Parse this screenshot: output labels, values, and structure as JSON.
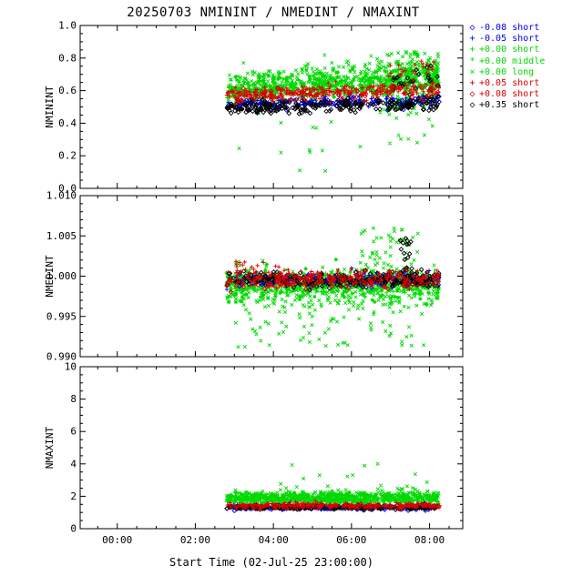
{
  "title": "20250703 NMININT / NMEDINT / NMAXINT",
  "xlabel": "Start Time (02-Jul-25 23:00:00)",
  "x_axis": {
    "min": 23.05,
    "max": 32.85,
    "major_ticks": [
      {
        "value": 24,
        "label": "00:00"
      },
      {
        "value": 26,
        "label": "02:00"
      },
      {
        "value": 28,
        "label": "04:00"
      },
      {
        "value": 30,
        "label": "06:00"
      },
      {
        "value": 32,
        "label": "08:00"
      }
    ],
    "minor_step": 0.5
  },
  "colors": {
    "blue": "#0000ee",
    "green": "#00d900",
    "red": "#dd0000",
    "black": "#000000"
  },
  "legend": {
    "items": [
      {
        "label": "-0.08 short",
        "color": "#0000ee",
        "glyph": "◇",
        "marker": "diamond"
      },
      {
        "label": "-0.05 short",
        "color": "#0000ee",
        "glyph": "+",
        "marker": "plus"
      },
      {
        "label": "+0.00 short",
        "color": "#00d900",
        "glyph": "+",
        "marker": "plus"
      },
      {
        "label": "+0.00 middle",
        "color": "#00d900",
        "glyph": "*",
        "marker": "asterisk"
      },
      {
        "label": "+0.00 long",
        "color": "#00d900",
        "glyph": "×",
        "marker": "x"
      },
      {
        "label": "+0.05 short",
        "color": "#dd0000",
        "glyph": "+",
        "marker": "plus"
      },
      {
        "label": "+0.08 short",
        "color": "#dd0000",
        "glyph": "◇",
        "marker": "diamond"
      },
      {
        "label": "+0.35 short",
        "color": "#000000",
        "glyph": "◇",
        "marker": "diamond"
      }
    ]
  },
  "chart_data": [
    {
      "type": "scatter",
      "ylabel": "NMININT",
      "ylim": [
        0.0,
        1.0
      ],
      "yticks": {
        "values": [
          0.0,
          0.2,
          0.4,
          0.6,
          0.8,
          1.0
        ],
        "labels": [
          "0.0",
          "0.2",
          "0.4",
          "0.6",
          "0.8",
          "1.0"
        ]
      },
      "y_minor_step": 0.05,
      "x_data_range": [
        26.8,
        32.25
      ],
      "series": [
        {
          "marker": "x",
          "color": "#00d900",
          "count": 520,
          "seed": 11,
          "x": [
            26.8,
            32.25
          ],
          "y_mean": [
            0.62,
            0.7
          ],
          "y_sigma": 0.055
        },
        {
          "marker": "plus",
          "color": "#00d900",
          "count": 300,
          "seed": 12,
          "x": [
            26.8,
            32.25
          ],
          "y_mean": [
            0.595,
            0.655
          ],
          "y_sigma": 0.03
        },
        {
          "marker": "asterisk",
          "color": "#00d900",
          "count": 150,
          "seed": 13,
          "x": [
            26.8,
            32.25
          ],
          "y_mean": [
            0.6,
            0.67
          ],
          "y_sigma": 0.04
        },
        {
          "marker": "x",
          "color": "#00d900",
          "count": 26,
          "seed": 14,
          "x": [
            26.9,
            32.1
          ],
          "y_uniform": [
            0.1,
            0.5
          ]
        },
        {
          "marker": "x",
          "color": "#00d900",
          "count": 110,
          "seed": 15,
          "x": [
            30.9,
            31.7
          ],
          "y_uniform": [
            0.45,
            0.85
          ]
        },
        {
          "marker": "x",
          "color": "#00d900",
          "count": 50,
          "seed": 16,
          "x": [
            31.85,
            32.2
          ],
          "y_uniform": [
            0.5,
            0.82
          ]
        },
        {
          "marker": "diamond",
          "color": "#0000ee",
          "count": 110,
          "seed": 17,
          "x": [
            26.8,
            32.25
          ],
          "y_mean": [
            0.515,
            0.535
          ],
          "y_sigma": 0.018
        },
        {
          "marker": "plus",
          "color": "#0000ee",
          "count": 110,
          "seed": 18,
          "x": [
            26.8,
            32.25
          ],
          "y_mean": [
            0.525,
            0.545
          ],
          "y_sigma": 0.018
        },
        {
          "marker": "diamond",
          "color": "#000000",
          "count": 250,
          "seed": 19,
          "x": [
            26.8,
            32.25
          ],
          "y_mean": [
            0.495,
            0.52
          ],
          "y_sigma": 0.022
        },
        {
          "marker": "diamond",
          "color": "#000000",
          "count": 30,
          "seed": 20,
          "x": [
            31.0,
            32.25
          ],
          "y_mean": [
            0.62,
            0.66
          ],
          "y_sigma": 0.05
        },
        {
          "marker": "plus",
          "color": "#dd0000",
          "count": 250,
          "seed": 21,
          "x": [
            26.8,
            32.25
          ],
          "y_mean": [
            0.575,
            0.6
          ],
          "y_sigma": 0.02
        },
        {
          "marker": "diamond",
          "color": "#dd0000",
          "count": 70,
          "seed": 22,
          "x": [
            26.8,
            32.25
          ],
          "y_mean": [
            0.58,
            0.6
          ],
          "y_sigma": 0.022
        },
        {
          "marker": "plus",
          "color": "#dd0000",
          "count": 22,
          "seed": 23,
          "x": [
            30.8,
            32.25
          ],
          "y_mean": [
            0.7,
            0.74
          ],
          "y_sigma": 0.035
        }
      ]
    },
    {
      "type": "scatter",
      "ylabel": "NMEDINT",
      "ylim": [
        0.99,
        1.01
      ],
      "yticks": {
        "values": [
          0.99,
          0.995,
          1.0,
          1.005,
          1.01
        ],
        "labels": [
          "0.990",
          "0.995",
          "1.000",
          "1.005",
          "1.010"
        ]
      },
      "y_minor_step": 0.001,
      "x_data_range": [
        26.8,
        32.25
      ],
      "series": [
        {
          "marker": "x",
          "color": "#00d900",
          "count": 480,
          "seed": 31,
          "x": [
            26.8,
            32.25
          ],
          "y_mean": [
            0.9985,
            0.9985
          ],
          "y_sigma": 0.0012
        },
        {
          "marker": "plus",
          "color": "#00d900",
          "count": 280,
          "seed": 32,
          "x": [
            26.8,
            32.25
          ],
          "y_mean": [
            0.9991,
            0.9991
          ],
          "y_sigma": 0.0007
        },
        {
          "marker": "asterisk",
          "color": "#00d900",
          "count": 140,
          "seed": 33,
          "x": [
            26.8,
            32.25
          ],
          "y_mean": [
            0.9987,
            0.9987
          ],
          "y_sigma": 0.001
        },
        {
          "marker": "x",
          "color": "#00d900",
          "count": 70,
          "seed": 34,
          "x": [
            27.0,
            31.9
          ],
          "y_uniform": [
            0.9912,
            0.9965
          ]
        },
        {
          "marker": "x",
          "color": "#00d900",
          "count": 70,
          "seed": 35,
          "x": [
            30.2,
            31.7
          ],
          "y_uniform": [
            0.9995,
            1.006
          ]
        },
        {
          "marker": "diamond",
          "color": "#0000ee",
          "count": 100,
          "seed": 36,
          "x": [
            26.8,
            32.25
          ],
          "y_mean": [
            0.9995,
            0.9995
          ],
          "y_sigma": 0.0004
        },
        {
          "marker": "plus",
          "color": "#0000ee",
          "count": 100,
          "seed": 37,
          "x": [
            26.8,
            32.25
          ],
          "y_mean": [
            0.9996,
            0.9996
          ],
          "y_sigma": 0.0004
        },
        {
          "marker": "diamond",
          "color": "#000000",
          "count": 280,
          "seed": 38,
          "x": [
            26.8,
            32.25
          ],
          "y_mean": [
            0.99955,
            0.99955
          ],
          "y_sigma": 0.00045
        },
        {
          "marker": "diamond",
          "color": "#000000",
          "count": 22,
          "seed": 39,
          "x": [
            31.25,
            31.55
          ],
          "y_uniform": [
            0.9995,
            1.0048
          ]
        },
        {
          "marker": "plus",
          "color": "#dd0000",
          "count": 240,
          "seed": 40,
          "x": [
            26.8,
            32.25
          ],
          "y_mean": [
            0.9997,
            0.9997
          ],
          "y_sigma": 0.0005
        },
        {
          "marker": "diamond",
          "color": "#dd0000",
          "count": 60,
          "seed": 41,
          "x": [
            26.8,
            32.25
          ],
          "y_mean": [
            0.9993,
            0.9993
          ],
          "y_sigma": 0.0005
        },
        {
          "marker": "plus",
          "color": "#dd0000",
          "count": 14,
          "seed": 42,
          "x": [
            27.0,
            28.3
          ],
          "y_mean": [
            1.0012,
            1.0012
          ],
          "y_sigma": 0.0005
        }
      ]
    },
    {
      "type": "scatter",
      "ylabel": "NMAXINT",
      "ylim": [
        0,
        10
      ],
      "yticks": {
        "values": [
          0,
          2,
          4,
          6,
          8,
          10
        ],
        "labels": [
          "0",
          "2",
          "4",
          "6",
          "8",
          "10"
        ]
      },
      "y_minor_step": 0.5,
      "x_data_range": [
        26.8,
        32.25
      ],
      "series": [
        {
          "marker": "x",
          "color": "#00d900",
          "count": 520,
          "seed": 51,
          "x": [
            26.8,
            32.25
          ],
          "y_mean": [
            1.95,
            1.9
          ],
          "y_sigma": 0.22
        },
        {
          "marker": "plus",
          "color": "#00d900",
          "count": 280,
          "seed": 52,
          "x": [
            26.8,
            32.25
          ],
          "y_mean": [
            1.8,
            1.8
          ],
          "y_sigma": 0.14
        },
        {
          "marker": "asterisk",
          "color": "#00d900",
          "count": 140,
          "seed": 53,
          "x": [
            26.8,
            32.25
          ],
          "y_mean": [
            1.85,
            1.85
          ],
          "y_sigma": 0.18
        },
        {
          "marker": "x",
          "color": "#00d900",
          "count": 16,
          "seed": 54,
          "x": [
            27.2,
            32.1
          ],
          "y_uniform": [
            2.5,
            4.3
          ]
        },
        {
          "marker": "diamond",
          "color": "#0000ee",
          "count": 110,
          "seed": 55,
          "x": [
            26.8,
            32.25
          ],
          "y_mean": [
            1.27,
            1.27
          ],
          "y_sigma": 0.06
        },
        {
          "marker": "plus",
          "color": "#0000ee",
          "count": 110,
          "seed": 56,
          "x": [
            26.8,
            32.25
          ],
          "y_mean": [
            1.32,
            1.32
          ],
          "y_sigma": 0.06
        },
        {
          "marker": "diamond",
          "color": "#000000",
          "count": 260,
          "seed": 57,
          "x": [
            26.8,
            32.25
          ],
          "y_mean": [
            1.33,
            1.33
          ],
          "y_sigma": 0.07
        },
        {
          "marker": "plus",
          "color": "#dd0000",
          "count": 230,
          "seed": 58,
          "x": [
            26.8,
            32.25
          ],
          "y_mean": [
            1.42,
            1.42
          ],
          "y_sigma": 0.08
        },
        {
          "marker": "diamond",
          "color": "#dd0000",
          "count": 60,
          "seed": 59,
          "x": [
            26.8,
            32.25
          ],
          "y_mean": [
            1.38,
            1.38
          ],
          "y_sigma": 0.07
        }
      ]
    }
  ]
}
